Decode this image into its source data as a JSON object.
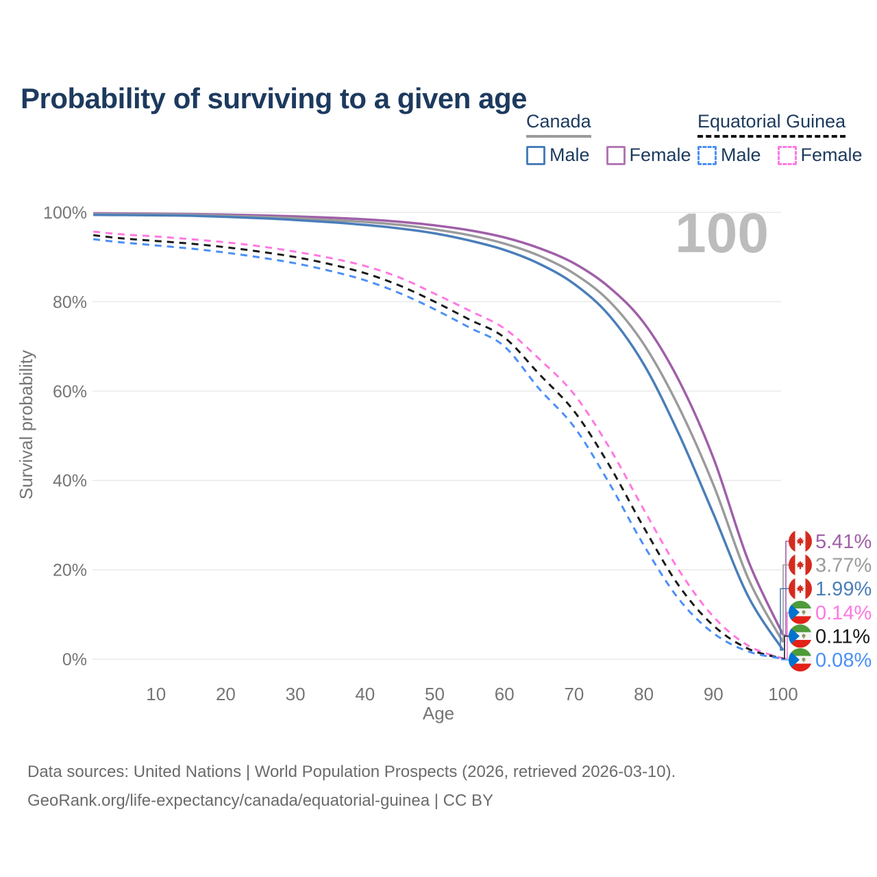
{
  "title": "Probability of surviving to a given age",
  "watermark": "100",
  "legend": {
    "groups": [
      {
        "label": "Canada",
        "underline_style": "solid",
        "underline_color": "#9b9b9b",
        "items": [
          {
            "label": "Male",
            "color": "#4a7eb9",
            "dashed": false
          },
          {
            "label": "Female",
            "color": "#b277b2",
            "dashed": false
          }
        ]
      },
      {
        "label": "Equatorial Guinea",
        "underline_style": "dashed",
        "underline_color": "#111111",
        "items": [
          {
            "label": "Male",
            "color": "#4b8ff7",
            "dashed": true
          },
          {
            "label": "Female",
            "color": "#ff78e2",
            "dashed": true
          }
        ]
      }
    ]
  },
  "chart_data": {
    "type": "line",
    "title": "Probability of surviving to a given age",
    "xlabel": "Age",
    "ylabel": "Survival probability",
    "xlim": [
      0,
      100
    ],
    "ylim": [
      0,
      100
    ],
    "grid": "horizontal",
    "xtick_values": [
      10,
      20,
      30,
      40,
      50,
      60,
      70,
      80,
      90,
      100
    ],
    "xtick_labels": [
      "10",
      "20",
      "30",
      "40",
      "50",
      "60",
      "70",
      "80",
      "90",
      "100"
    ],
    "ytick_values": [
      0,
      20,
      40,
      60,
      80,
      100
    ],
    "ytick_labels": [
      "0%",
      "20%",
      "40%",
      "60%",
      "80%",
      "100%"
    ],
    "x": [
      1,
      5,
      10,
      15,
      20,
      25,
      30,
      35,
      40,
      45,
      50,
      55,
      60,
      65,
      70,
      75,
      80,
      85,
      90,
      95,
      100
    ],
    "series": [
      {
        "name": "Canada Female",
        "country": "Canada",
        "sex": "Female",
        "color": "#a05fa8",
        "dashed": false,
        "end_label": "5.41%",
        "flag": "canada-flag-icon",
        "values": [
          99.8,
          99.75,
          99.7,
          99.62,
          99.5,
          99.32,
          99.1,
          98.82,
          98.45,
          97.9,
          97.1,
          96.0,
          94.4,
          92.0,
          88.6,
          83.3,
          75.3,
          62.5,
          45.0,
          22.0,
          5.41
        ]
      },
      {
        "name": "Canada Both sexes",
        "country": "Canada",
        "sex": "Both",
        "color": "#9b9b9b",
        "dashed": false,
        "end_label": "3.77%",
        "flag": "canada-flag-icon",
        "values": [
          99.65,
          99.6,
          99.55,
          99.45,
          99.25,
          99.0,
          98.7,
          98.3,
          97.85,
          97.2,
          96.2,
          94.9,
          93.0,
          90.3,
          86.3,
          80.2,
          70.5,
          56.5,
          39.0,
          18.0,
          3.77
        ]
      },
      {
        "name": "Canada Male",
        "country": "Canada",
        "sex": "Male",
        "color": "#4a7eb9",
        "dashed": false,
        "end_label": "1.99%",
        "flag": "canada-flag-icon",
        "values": [
          99.45,
          99.4,
          99.35,
          99.25,
          99.0,
          98.7,
          98.3,
          97.8,
          97.2,
          96.4,
          95.3,
          93.7,
          91.6,
          88.5,
          84.0,
          77.0,
          66.0,
          50.5,
          32.5,
          14.0,
          1.99
        ]
      },
      {
        "name": "Equatorial Guinea Female",
        "country": "Equatorial Guinea",
        "sex": "Female",
        "color": "#ff78e2",
        "dashed": true,
        "end_label": "0.14%",
        "flag": "equatorial-guinea-flag-icon",
        "values": [
          95.7,
          95.1,
          94.6,
          94.0,
          93.3,
          92.4,
          91.2,
          89.8,
          88.0,
          85.4,
          81.8,
          78.0,
          74.0,
          67.2,
          59.3,
          47.5,
          33.5,
          20.0,
          9.5,
          3.0,
          0.14
        ]
      },
      {
        "name": "Equatorial Guinea Both sexes",
        "country": "Equatorial Guinea",
        "sex": "Both",
        "color": "#1a1a1a",
        "dashed": true,
        "end_label": "0.11%",
        "flag": "equatorial-guinea-flag-icon",
        "values": [
          94.9,
          94.2,
          93.6,
          93.0,
          92.2,
          91.2,
          90.0,
          88.4,
          86.4,
          83.6,
          80.0,
          76.0,
          72.0,
          63.8,
          55.5,
          43.5,
          29.5,
          16.5,
          7.5,
          2.3,
          0.11
        ]
      },
      {
        "name": "Equatorial Guinea Male",
        "country": "Equatorial Guinea",
        "sex": "Male",
        "color": "#4b8ff7",
        "dashed": true,
        "end_label": "0.08%",
        "flag": "equatorial-guinea-flag-icon",
        "values": [
          94.0,
          93.3,
          92.6,
          91.9,
          91.0,
          89.9,
          88.6,
          86.9,
          84.8,
          81.9,
          78.3,
          74.2,
          70.0,
          60.5,
          52.0,
          39.5,
          25.5,
          13.5,
          5.8,
          1.7,
          0.08
        ]
      }
    ]
  },
  "footer": {
    "line1": "Data sources: United Nations | World Population Prospects (2026, retrieved 2026-03-10).",
    "line2": "GeoRank.org/life-expectancy/canada/equatorial-guinea | CC BY"
  }
}
